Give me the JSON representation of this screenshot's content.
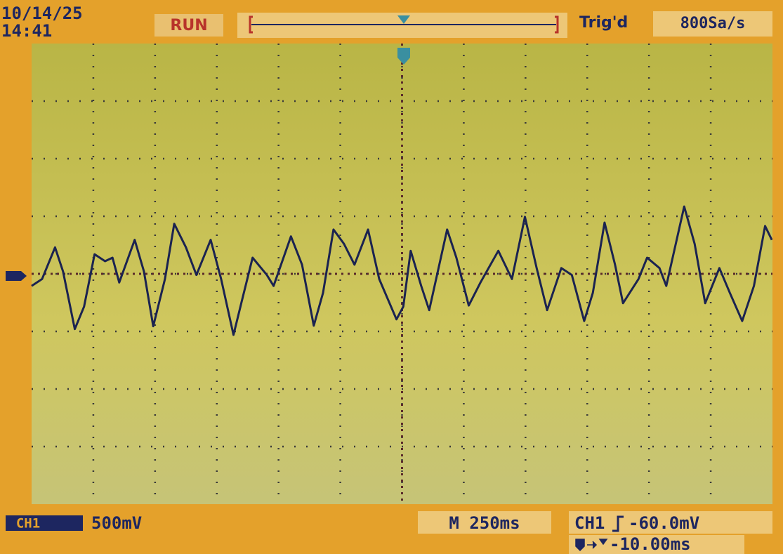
{
  "header": {
    "date": "10/14/25",
    "time": "14:41",
    "status": "RUN",
    "trigger_status": "Trig'd",
    "sample_rate": "800Sa/s"
  },
  "footer": {
    "channel": "CH1",
    "volts_per_div": "500mV",
    "timebase": "M 250ms",
    "trigger_source": "CH1",
    "trigger_level": "-60.0mV",
    "trigger_delay": "-10.00ms"
  },
  "waveform": {
    "x": [
      0,
      0.17,
      0.38,
      0.51,
      0.7,
      0.85,
      1.02,
      1.19,
      1.31,
      1.42,
      1.67,
      1.82,
      1.97,
      2.16,
      2.31,
      2.5,
      2.67,
      2.9,
      3.07,
      3.27,
      3.41,
      3.58,
      3.81,
      3.92,
      4.2,
      4.38,
      4.57,
      4.72,
      4.89,
      5.06,
      5.23,
      5.45,
      5.63,
      5.91,
      6.02,
      6.14,
      6.31,
      6.44,
      6.73,
      6.88,
      7.08,
      7.27,
      7.56,
      7.78,
      7.99,
      8.18,
      8.35,
      8.58,
      8.75,
      8.95,
      9.09,
      9.28,
      9.45,
      9.58,
      9.83,
      9.97,
      10.17,
      10.28,
      10.57,
      10.74,
      10.91,
      11.14,
      11.31,
      11.51,
      11.7,
      11.88,
      11.99
    ],
    "y": [
      -0.21,
      -0.09,
      0.46,
      0.04,
      -0.96,
      -0.57,
      0.34,
      0.22,
      0.28,
      -0.15,
      0.59,
      0.04,
      -0.91,
      -0.09,
      0.87,
      0.46,
      -0.02,
      0.59,
      -0.09,
      -1.06,
      -0.45,
      0.28,
      -0.02,
      -0.21,
      0.65,
      0.16,
      -0.9,
      -0.33,
      0.77,
      0.52,
      0.16,
      0.77,
      -0.09,
      -0.79,
      -0.57,
      0.4,
      -0.21,
      -0.63,
      0.77,
      0.28,
      -0.55,
      -0.15,
      0.4,
      -0.09,
      0.99,
      0.1,
      -0.63,
      0.1,
      -0.02,
      -0.82,
      -0.33,
      0.89,
      0.16,
      -0.51,
      -0.09,
      0.28,
      0.1,
      -0.21,
      1.17,
      0.52,
      -0.51,
      0.1,
      -0.33,
      -0.82,
      -0.21,
      0.83,
      0.59
    ]
  }
}
